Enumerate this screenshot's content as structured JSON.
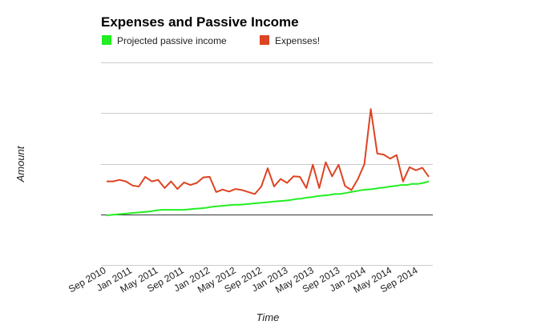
{
  "chart_data": {
    "type": "line",
    "title": "Expenses and Passive Income",
    "xlabel": "Time",
    "ylabel": "Amount",
    "legend_position": "top",
    "grid": true,
    "x_tick_labels": [
      "Sep 2010",
      "Jan 2011",
      "May 2011",
      "Sep 2011",
      "Jan 2012",
      "May 2012",
      "Sep 2012",
      "Jan 2013",
      "May 2013",
      "Sep 2013",
      "Jan 2014",
      "May 2014",
      "Sep 2014"
    ],
    "ylim": [
      -1,
      3
    ],
    "gridlines_y": [
      -1,
      0,
      1,
      2,
      3
    ],
    "series": [
      {
        "name": "Projected passive income",
        "color": "#22ee22",
        "values": [
          -0.02,
          -0.01,
          0.0,
          0.01,
          0.02,
          0.03,
          0.04,
          0.05,
          0.06,
          0.08,
          0.09,
          0.09,
          0.09,
          0.09,
          0.09,
          0.1,
          0.11,
          0.12,
          0.13,
          0.15,
          0.16,
          0.17,
          0.18,
          0.19,
          0.19,
          0.2,
          0.21,
          0.22,
          0.23,
          0.24,
          0.25,
          0.26,
          0.27,
          0.28,
          0.3,
          0.31,
          0.33,
          0.34,
          0.36,
          0.37,
          0.38,
          0.4,
          0.4,
          0.42,
          0.44,
          0.46,
          0.48,
          0.49,
          0.5,
          0.52,
          0.53,
          0.55,
          0.56,
          0.58,
          0.58,
          0.6,
          0.6,
          0.62,
          0.65
        ]
      },
      {
        "name": "Expenses!",
        "color": "#dd4422",
        "values": [
          0.65,
          0.65,
          0.68,
          0.65,
          0.57,
          0.55,
          0.74,
          0.65,
          0.68,
          0.52,
          0.65,
          0.5,
          0.63,
          0.58,
          0.62,
          0.73,
          0.74,
          0.44,
          0.49,
          0.45,
          0.5,
          0.48,
          0.44,
          0.4,
          0.55,
          0.91,
          0.55,
          0.7,
          0.62,
          0.75,
          0.74,
          0.52,
          0.98,
          0.52,
          1.03,
          0.75,
          0.98,
          0.56,
          0.48,
          0.7,
          0.99,
          2.08,
          1.2,
          1.18,
          1.1,
          1.17,
          0.65,
          0.93,
          0.87,
          0.92,
          0.74
        ]
      }
    ]
  }
}
